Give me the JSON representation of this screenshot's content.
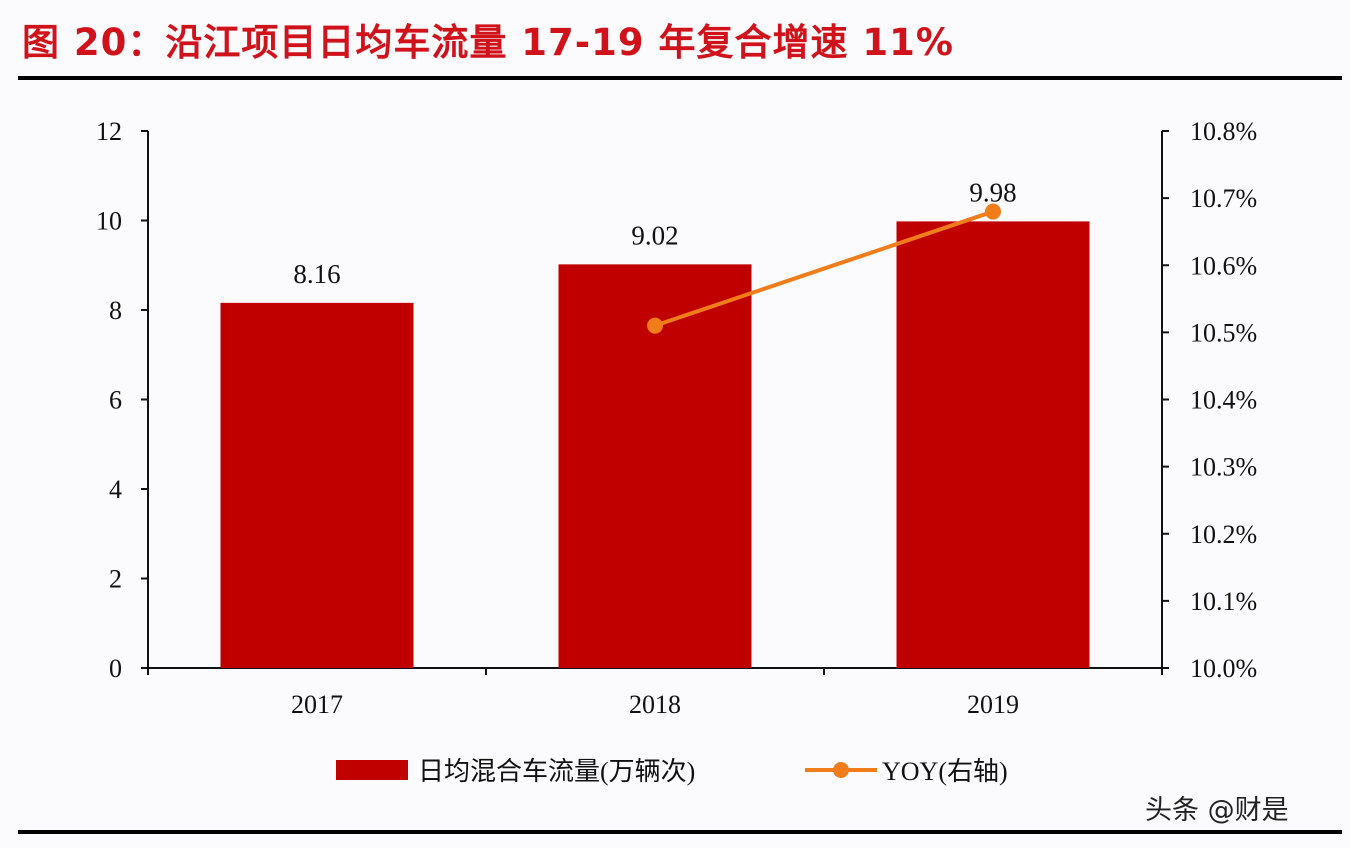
{
  "title": "图 20：沿江项目日均车流量 17-19 年复合增速 11%",
  "watermark": "头条 @财是",
  "chart_data": {
    "type": "bar+line",
    "title": "图 20：沿江项目日均车流量 17-19 年复合增速 11%",
    "categories": [
      "2017",
      "2018",
      "2019"
    ],
    "series": [
      {
        "name": "日均混合车流量(万辆次)",
        "type": "bar",
        "axis": "left",
        "values": [
          8.16,
          9.02,
          9.98
        ],
        "data_labels": [
          "8.16",
          "9.02",
          "9.98"
        ],
        "color": "#c00000"
      },
      {
        "name": "YOY(右轴)",
        "type": "line",
        "axis": "right",
        "values": [
          null,
          10.51,
          10.68
        ],
        "color": "#f07d1a"
      }
    ],
    "y_left": {
      "lim": [
        0,
        12
      ],
      "ticks": [
        "0",
        "2",
        "4",
        "6",
        "8",
        "10",
        "12"
      ]
    },
    "y_right": {
      "lim": [
        10.0,
        10.8
      ],
      "ticks": [
        "10.0%",
        "10.1%",
        "10.2%",
        "10.3%",
        "10.4%",
        "10.5%",
        "10.6%",
        "10.7%",
        "10.8%"
      ]
    },
    "grid": false,
    "legend": "bottom"
  }
}
